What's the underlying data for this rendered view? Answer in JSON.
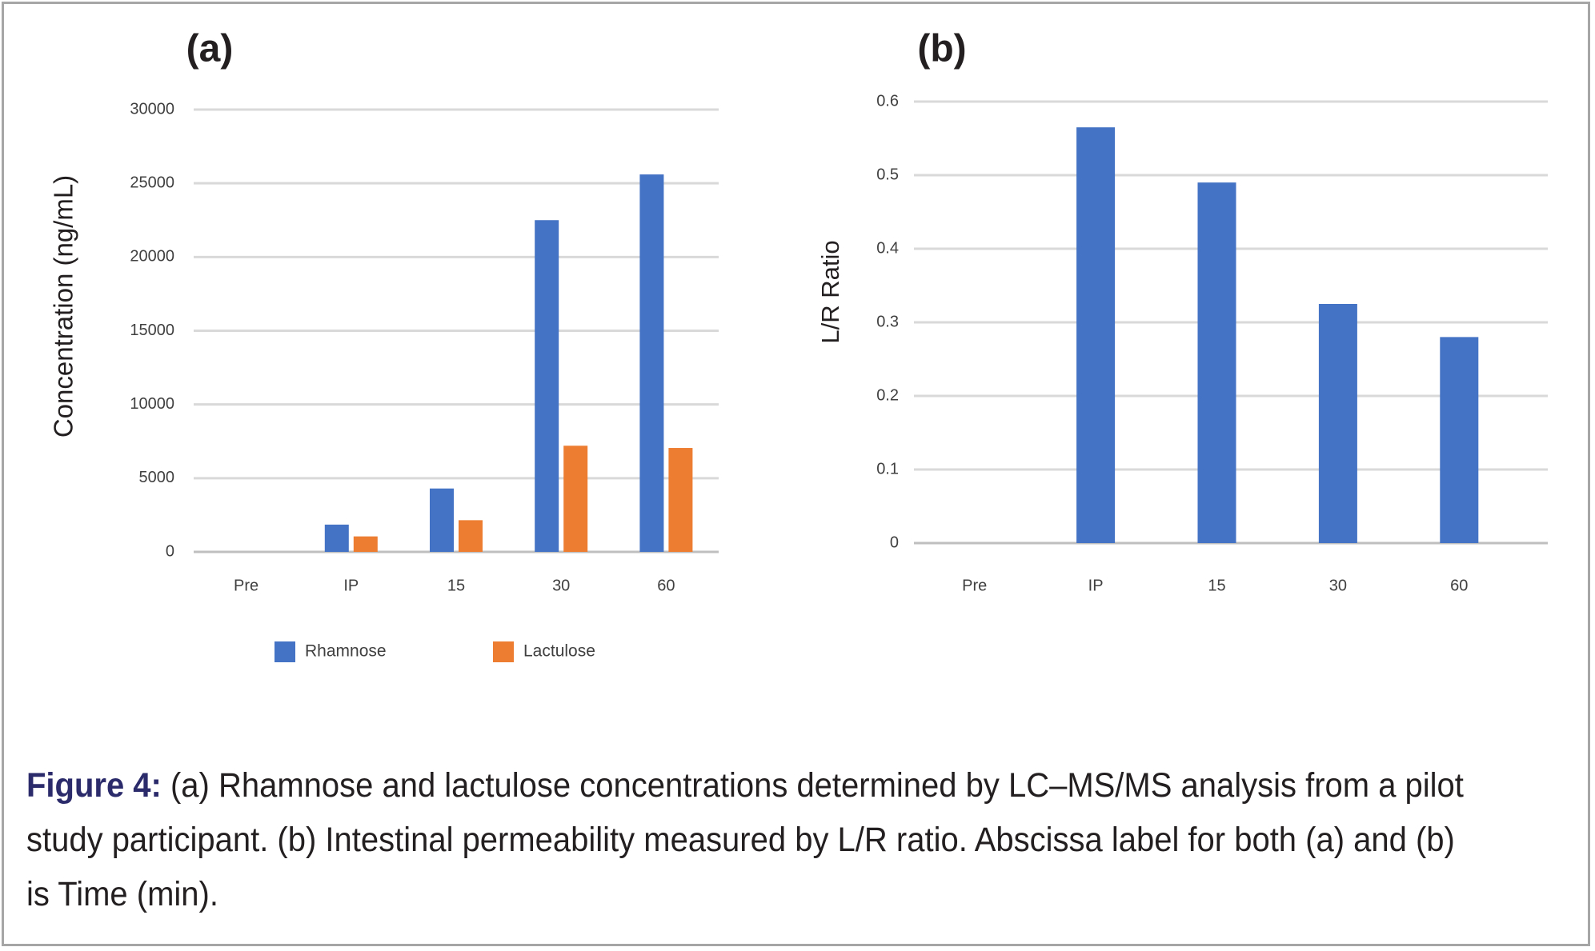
{
  "chart_data": [
    {
      "type": "bar",
      "panel_label": "(a)",
      "ylabel": "Concentration (ng/mL)",
      "xlabel": "",
      "categories": [
        "Pre",
        "IP",
        "15",
        "30",
        "60"
      ],
      "ylim": [
        0,
        30000
      ],
      "yticks": [
        0,
        5000,
        10000,
        15000,
        20000,
        25000,
        30000
      ],
      "grid": true,
      "legend_position": "bottom",
      "series": [
        {
          "name": "Rhamnose",
          "color": "#4472c4",
          "values": [
            0,
            1850,
            4300,
            22500,
            25600
          ]
        },
        {
          "name": "Lactulose",
          "color": "#ed7d31",
          "values": [
            0,
            1050,
            2150,
            7200,
            7050
          ]
        }
      ]
    },
    {
      "type": "bar",
      "panel_label": "(b)",
      "ylabel": "L/R Ratio",
      "xlabel": "",
      "categories": [
        "Pre",
        "IP",
        "15",
        "30",
        "60"
      ],
      "ylim": [
        0,
        0.6
      ],
      "yticks": [
        0,
        0.1,
        0.2,
        0.3,
        0.4,
        0.5,
        0.6
      ],
      "grid": true,
      "series": [
        {
          "name": "L/R Ratio",
          "color": "#4472c4",
          "values": [
            0,
            0.565,
            0.49,
            0.325,
            0.28
          ]
        }
      ]
    }
  ],
  "caption": {
    "label": "Figure 4:",
    "text": " (a) Rhamnose and lactulose concentrations determined by LC–MS/MS analysis from a pilot study participant. (b) Intestinal permeability measured by L/R ratio. Abscissa label for both (a) and (b) is Time (min)."
  }
}
